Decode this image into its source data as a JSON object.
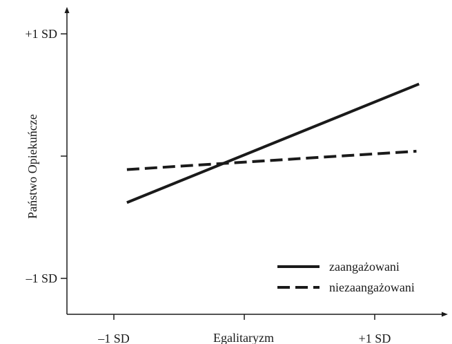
{
  "chart_data": {
    "type": "line",
    "title": "",
    "xlabel": "Egalitaryzm",
    "ylabel": "Państwo Opiekuńcze",
    "x": [
      -1,
      1
    ],
    "xlim": [
      -1.7,
      3.0
    ],
    "ylim": [
      -2.0,
      2.1
    ],
    "x_ticks": [
      {
        "value": -1,
        "label": "–1 SD"
      },
      {
        "value": 0,
        "label": ""
      },
      {
        "value": 1,
        "label": "+1 SD"
      }
    ],
    "y_ticks": [
      {
        "value": 1,
        "label": "+1 SD"
      },
      {
        "value": 0,
        "label": ""
      },
      {
        "value": -1,
        "label": "–1 SD"
      }
    ],
    "series": [
      {
        "name": "zaangażowani",
        "style": "solid",
        "color": "#1a1a1a",
        "points": [
          [
            -0.9,
            -0.38
          ],
          [
            1.34,
            0.59
          ]
        ]
      },
      {
        "name": "niezaangażowani",
        "style": "dashed",
        "color": "#1a1a1a",
        "points": [
          [
            -0.9,
            -0.11
          ],
          [
            1.32,
            0.04
          ]
        ]
      }
    ],
    "legend_position": "bottom-right",
    "grid": false
  }
}
